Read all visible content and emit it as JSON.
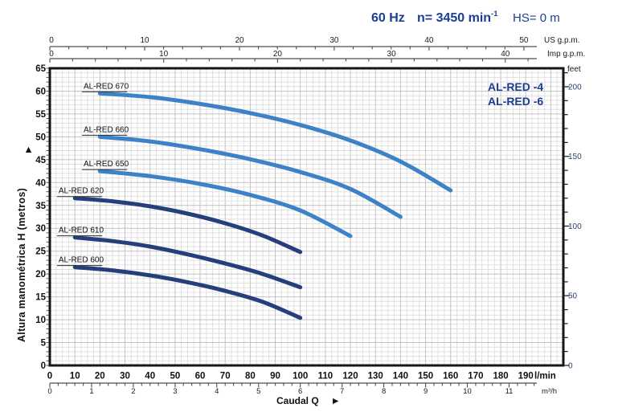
{
  "header": {
    "frequency": "60 Hz",
    "speed_prefix": "n= 3450 min",
    "speed_exponent": "-1",
    "suction_head": "HS= 0 m"
  },
  "legend": {
    "models": [
      "AL-RED -4",
      "AL-RED -6"
    ]
  },
  "axis_labels": {
    "y_left": "Altura manométrica H  (metros)",
    "y_left_arrow": "▶",
    "y_right_unit": "feet",
    "x_flow_label": "Caudal Q",
    "x_flow_arrow": "▶",
    "unit_us": "US g.p.m.",
    "unit_imp": "Imp g.p.m.",
    "unit_lmin": "l/min",
    "unit_m3h": "m³/h"
  },
  "colors": {
    "accent_blue": "#1b3e91",
    "light_curve": "#3d82c6",
    "dark_curve": "#263f7c",
    "grid_minor": "#e0e0e0",
    "grid_major": "#c3c3c3",
    "frame": "#161616",
    "scale_line": "#4f4f4f",
    "feet_text": "#27406f"
  },
  "chart_data": {
    "type": "line",
    "xlim_lmin": [
      0,
      205
    ],
    "ylim_m": [
      0,
      65
    ],
    "grid": {
      "minor_x_lmin": 2.5,
      "minor_y_m": 1,
      "major_x_lmin": 10,
      "major_y_m": 5
    },
    "x_axes": [
      {
        "id": "us_gpm",
        "unit": "US g.p.m.",
        "labeled_ticks": [
          0,
          10,
          20,
          30,
          40,
          50
        ],
        "minor_step": 2,
        "lmin_per_unit": 3.785
      },
      {
        "id": "imp_gpm",
        "unit": "Imp g.p.m.",
        "labeled_ticks": [
          0,
          10,
          20,
          30,
          40
        ],
        "minor_step": 2,
        "lmin_per_unit": 4.546
      },
      {
        "id": "lmin",
        "unit": "l/min",
        "labeled_ticks": [
          0,
          10,
          20,
          30,
          40,
          50,
          60,
          70,
          80,
          90,
          100,
          110,
          120,
          130,
          140,
          150,
          160,
          170,
          180,
          190
        ]
      },
      {
        "id": "m3h",
        "unit": "m³/h",
        "labeled_ticks": [
          0,
          1,
          2,
          3,
          4,
          5,
          6,
          7,
          8,
          9,
          10,
          11
        ],
        "minor_step": 0.2,
        "lmin_per_unit": 16.667
      }
    ],
    "y_axes": [
      {
        "id": "metros",
        "label": "Altura manométrica H (metros)",
        "labeled_ticks": [
          0,
          5,
          10,
          15,
          20,
          25,
          30,
          35,
          40,
          45,
          50,
          55,
          60,
          65
        ]
      },
      {
        "id": "feet",
        "unit": "feet",
        "labeled_ticks": [
          0,
          50,
          100,
          150,
          200
        ],
        "minor_step": 10,
        "m_per_unit": 0.3048
      }
    ],
    "series": [
      {
        "name": "AL-RED 670",
        "color": "#3d82c6",
        "points_lmin_m": [
          [
            20,
            59.5
          ],
          [
            40,
            58.7
          ],
          [
            60,
            57.2
          ],
          [
            80,
            55.2
          ],
          [
            100,
            52.6
          ],
          [
            120,
            49.2
          ],
          [
            140,
            44.6
          ],
          [
            160,
            38.3
          ]
        ]
      },
      {
        "name": "AL-RED 660",
        "color": "#3d82c6",
        "points_lmin_m": [
          [
            20,
            50.0
          ],
          [
            40,
            49.0
          ],
          [
            60,
            47.3
          ],
          [
            80,
            45.1
          ],
          [
            100,
            42.3
          ],
          [
            120,
            38.6
          ],
          [
            140,
            32.5
          ]
        ]
      },
      {
        "name": "AL-RED 650",
        "color": "#3d82c6",
        "points_lmin_m": [
          [
            20,
            42.5
          ],
          [
            40,
            41.4
          ],
          [
            60,
            39.7
          ],
          [
            80,
            37.3
          ],
          [
            100,
            33.9
          ],
          [
            120,
            28.3
          ]
        ]
      },
      {
        "name": "AL-RED 620",
        "color": "#263f7c",
        "points_lmin_m": [
          [
            10,
            36.6
          ],
          [
            25,
            35.9
          ],
          [
            40,
            34.8
          ],
          [
            55,
            33.2
          ],
          [
            70,
            31.1
          ],
          [
            85,
            28.4
          ],
          [
            100,
            24.8
          ]
        ]
      },
      {
        "name": "AL-RED 610",
        "color": "#263f7c",
        "points_lmin_m": [
          [
            10,
            28.0
          ],
          [
            25,
            27.2
          ],
          [
            40,
            26.0
          ],
          [
            55,
            24.3
          ],
          [
            70,
            22.3
          ],
          [
            85,
            20.0
          ],
          [
            100,
            17.1
          ]
        ]
      },
      {
        "name": "AL-RED 600",
        "color": "#263f7c",
        "points_lmin_m": [
          [
            10,
            21.5
          ],
          [
            25,
            20.8
          ],
          [
            40,
            19.7
          ],
          [
            55,
            18.2
          ],
          [
            70,
            16.3
          ],
          [
            85,
            13.9
          ],
          [
            100,
            10.4
          ]
        ]
      }
    ]
  }
}
